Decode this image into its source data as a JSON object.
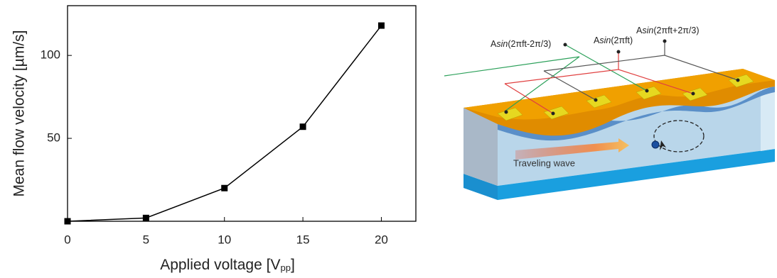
{
  "chart_data": {
    "type": "line",
    "xlabel": {
      "text": "Applied voltage [V",
      "subscript": "pp",
      "suffix": "]"
    },
    "ylabel": "Mean flow velocity [µm/s]",
    "x": [
      0,
      5,
      10,
      15,
      20
    ],
    "series": [
      {
        "color": "#000000",
        "values": [
          0,
          2,
          20,
          57,
          118
        ]
      }
    ],
    "xlim": [
      0,
      22.2
    ],
    "xticks": [
      0,
      5,
      10,
      15,
      20
    ],
    "ylim": [
      0,
      130
    ],
    "yticks": [
      50,
      100
    ]
  },
  "diagram": {
    "labels": [
      {
        "pre": "A",
        "italic": "sin",
        "post": "(2πft-2π/3)"
      },
      {
        "pre": "A",
        "italic": "sin",
        "post": "(2πft)"
      },
      {
        "pre": "A",
        "italic": "sin",
        "post": "(2πft+2π/3)"
      }
    ],
    "wave_label": "Traveling wave"
  }
}
